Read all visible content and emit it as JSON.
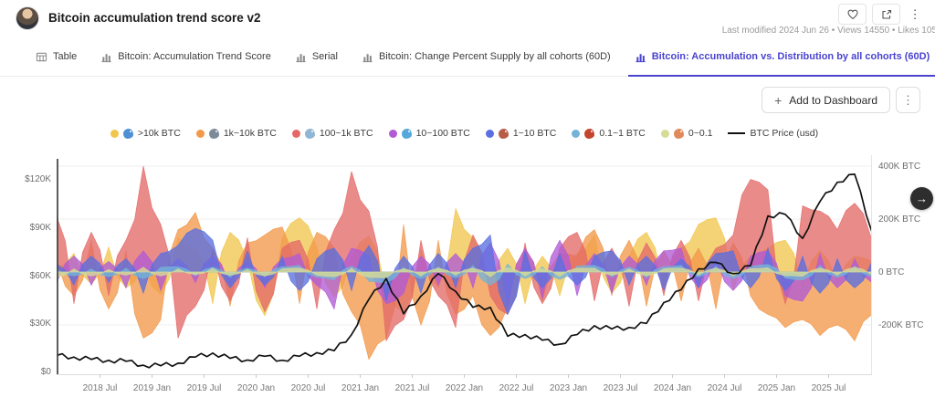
{
  "header": {
    "title": "Bitcoin accumulation trend score v2",
    "meta": "Last modified 2024 Jun 26 • Views 14550 • Likes 105",
    "kebab_glyph": "⋮",
    "arrow_glyph": "→"
  },
  "tabs": [
    {
      "label": "Table",
      "icon": "table",
      "active": false
    },
    {
      "label": "Bitcoin: Accumulation Trend Score",
      "icon": "chart",
      "active": false
    },
    {
      "label": "Serial",
      "icon": "chart",
      "active": false
    },
    {
      "label": "Bitcoin: Change Percent Supply by all cohorts (60D)",
      "icon": "chart",
      "active": false
    },
    {
      "label": "Bitcoin: Accumulation vs. Distribution by all cohorts (60D)",
      "icon": "chart",
      "active": true
    }
  ],
  "toolbar": {
    "add_label": "Add to Dashboard",
    "plus_glyph": "+",
    "kebab_glyph": "⋮"
  },
  "chart_data": {
    "type": "area",
    "description": "Net BTC accumulation (positive) vs distribution (negative) by holder cohort, 60D, with BTC price overlay",
    "start": "2018-02",
    "sample_interval_months": 2,
    "months_total": 94,
    "x_axis": {
      "tick_labels": [
        "2018 Jul",
        "2019 Jan",
        "2019 Jul",
        "2020 Jan",
        "2020 Jul",
        "2021 Jan",
        "2021 Jul",
        "2022 Jan",
        "2022 Jul",
        "2023 Jan",
        "2023 Jul",
        "2024 Jan",
        "2024 Jul",
        "2025 Jan",
        "2025 Jul"
      ],
      "tick_months": [
        5,
        11,
        17,
        23,
        29,
        35,
        41,
        47,
        53,
        59,
        65,
        71,
        77,
        83,
        89
      ]
    },
    "y_left": {
      "unit": "USD (thousands)",
      "tick_labels": [
        "$120K",
        "$90K",
        "$60K",
        "$30K",
        "$0"
      ],
      "tick_values": [
        120,
        90,
        60,
        30,
        0
      ],
      "domain": [
        0,
        135
      ]
    },
    "y_right": {
      "unit": "BTC (thousands)",
      "tick_labels": [
        "400K BTC",
        "200K BTC",
        "0 BTC",
        "-200K BTC"
      ],
      "tick_values": [
        400,
        200,
        0,
        -200
      ],
      "domain": [
        -386,
        441
      ]
    },
    "series": [
      {
        "label": ">10k BTC",
        "icon": "whale-emoji",
        "icon_color": "#4f8fd4",
        "color": "#F0C64E",
        "values": [
          15,
          70,
          -45,
          95,
          -60,
          25,
          -85,
          130,
          90,
          -120,
          150,
          45,
          -165,
          130,
          205,
          95,
          -95,
          55,
          135,
          -80,
          -150,
          85,
          -60,
          240,
          130,
          -70,
          90,
          -120,
          60,
          -90,
          70,
          140,
          -80,
          60,
          150,
          -60,
          90,
          180,
          205,
          -70,
          60,
          90,
          120,
          -60,
          80,
          -50,
          60,
          40
        ]
      },
      {
        "label": "1k~10k BTC",
        "icon": "shark-emoji",
        "icon_color": "#7d8b99",
        "color": "#F2994A",
        "values": [
          40,
          -90,
          120,
          -140,
          80,
          -250,
          -180,
          160,
          225,
          90,
          -130,
          110,
          140,
          170,
          -120,
          150,
          90,
          -150,
          -330,
          -250,
          180,
          -200,
          120,
          -160,
          -90,
          -240,
          -130,
          90,
          -110,
          70,
          60,
          160,
          -90,
          120,
          -130,
          80,
          -110,
          90,
          -140,
          110,
          -90,
          -160,
          -210,
          -180,
          -240,
          -200,
          -260,
          -160
        ]
      },
      {
        "label": "100~1k BTC",
        "icon": "dolphin-emoji",
        "icon_color": "#8fb6d4",
        "color": "#E36A68",
        "values": [
          210,
          -120,
          150,
          -90,
          120,
          400,
          180,
          -250,
          -130,
          90,
          -110,
          130,
          -150,
          90,
          120,
          -140,
          160,
          380,
          230,
          -260,
          -180,
          120,
          -90,
          -210,
          140,
          -90,
          -160,
          110,
          -120,
          90,
          150,
          -110,
          90,
          -130,
          110,
          -90,
          120,
          -110,
          90,
          140,
          350,
          310,
          -120,
          250,
          230,
          160,
          260,
          120
        ]
      },
      {
        "label": "10~100 BTC",
        "icon": "fish-emoji",
        "icon_color": "#55a8dc",
        "color": "#B15BD6",
        "values": [
          -40,
          60,
          -50,
          40,
          -60,
          80,
          -70,
          50,
          -40,
          60,
          -50,
          40,
          -60,
          50,
          70,
          -50,
          -140,
          90,
          60,
          -120,
          -80,
          60,
          -50,
          70,
          -60,
          110,
          -130,
          90,
          -100,
          120,
          -90,
          70,
          -80,
          60,
          -50,
          80,
          90,
          -60,
          50,
          -70,
          60,
          80,
          -90,
          -110,
          70,
          -60,
          50,
          -40
        ]
      },
      {
        "label": "1~10 BTC",
        "icon": "octopus-emoji",
        "icon_color": "#b85c48",
        "color": "#5A6FE0",
        "values": [
          30,
          -50,
          60,
          -40,
          50,
          -80,
          70,
          100,
          165,
          120,
          -60,
          80,
          -50,
          60,
          -70,
          50,
          90,
          -70,
          100,
          -110,
          60,
          -80,
          70,
          -60,
          90,
          140,
          -160,
          80,
          -60,
          70,
          -50,
          60,
          80,
          -50,
          60,
          -70,
          50,
          -60,
          70,
          80,
          -60,
          90,
          -70,
          60,
          -80,
          50,
          -60,
          40
        ]
      },
      {
        "label": "0.1~1 BTC",
        "icon": "crab-emoji",
        "icon_color": "#c2452e",
        "color": "#74B3D8",
        "values": [
          10,
          -15,
          12,
          -18,
          15,
          -25,
          18,
          20,
          -15,
          18,
          -20,
          15,
          -18,
          20,
          25,
          -20,
          -30,
          22,
          -35,
          -40,
          18,
          -25,
          20,
          -22,
          25,
          -50,
          30,
          -25,
          20,
          -28,
          22,
          25,
          -20,
          18,
          -22,
          20,
          25,
          -18,
          22,
          -25,
          20,
          28,
          -22,
          -30,
          25,
          -20,
          22,
          -18
        ]
      },
      {
        "label": "0~0.1",
        "icon": "shrimp-emoji",
        "icon_color": "#e08a5c",
        "color": "#D6DB96",
        "values": [
          -20,
          12,
          -15,
          10,
          -12,
          18,
          -15,
          12,
          -10,
          14,
          -12,
          10,
          -15,
          12,
          15,
          -12,
          -18,
          14,
          -20,
          -22,
          12,
          -15,
          14,
          -12,
          15,
          -18,
          16,
          -14,
          12,
          -16,
          14,
          15,
          -12,
          12,
          -14,
          12,
          15,
          -12,
          14,
          -15,
          12,
          16,
          -14,
          -16,
          14,
          -12,
          18,
          -12
        ]
      }
    ],
    "price": {
      "label": "BTC Price (usd)",
      "color": "#111111",
      "unit": "K USD",
      "values": [
        10,
        9,
        7.5,
        7,
        6.4,
        3.9,
        3.6,
        5.2,
        9,
        11.5,
        8.2,
        7.2,
        9.5,
        7,
        9.5,
        11.7,
        13,
        23,
        45,
        58,
        36,
        47,
        61,
        50,
        40,
        40,
        22,
        23,
        19.5,
        17,
        23,
        28.5,
        26.5,
        27.5,
        30,
        43,
        51,
        64,
        68,
        61,
        66,
        97,
        98,
        83,
        106,
        118,
        123,
        87
      ]
    }
  }
}
